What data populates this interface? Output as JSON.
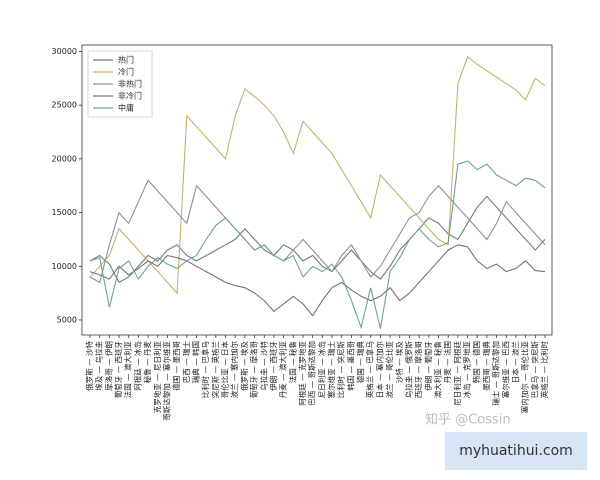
{
  "chart_data": {
    "type": "line",
    "categories": [
      "俄罗斯 — 沙特",
      "埃及 — 乌拉圭",
      "摩洛哥 — 伊朗",
      "葡萄牙 — 西班牙",
      "法国 — 澳大利亚",
      "阿根廷 — 冰岛",
      "秘鲁 — 丹麦",
      "克罗地亚 — 尼日利亚",
      "哥斯达黎加 — 塞尔维亚",
      "德国 — 墨西哥",
      "巴西 — 瑞士",
      "瑞典 — 韩国",
      "比利时 — 巴拿马",
      "突尼斯 — 英格兰",
      "哥伦比亚 — 日本",
      "波兰 — 塞内加尔",
      "俄罗斯 — 埃及",
      "葡萄牙 — 摩洛哥",
      "乌拉圭 — 沙特",
      "伊朗 — 西班牙",
      "丹麦 — 澳大利亚",
      "法国 — 秘鲁",
      "阿根廷 — 克罗地亚",
      "巴西 — 哥斯达黎加",
      "尼日利亚 — 冰岛",
      "塞尔维亚 — 瑞士",
      "比利时 — 突尼斯",
      "韩国 — 墨西哥",
      "德国 — 瑞典",
      "英格兰 — 巴拿马",
      "日本 — 塞内加尔",
      "波兰 — 哥伦比亚",
      "沙特 — 埃及",
      "乌拉圭 — 俄罗斯",
      "西班牙 — 摩洛哥",
      "伊朗 — 葡萄牙",
      "澳大利亚 — 秘鲁",
      "丹麦 — 法国",
      "尼日利亚 — 阿根廷",
      "冰岛 — 克罗地亚",
      "韩国 — 德国",
      "墨西哥 — 瑞典",
      "瑞士 — 哥斯达黎加",
      "塞尔维亚 — 巴西",
      "日本 — 波兰",
      "塞内加尔 — 哥伦比亚",
      "巴拿马 — 突尼斯",
      "英格兰 — 比利时"
    ],
    "series": [
      {
        "name": "热门",
        "color": "#6f7a8c",
        "values": [
          10500,
          11000,
          10200,
          8500,
          9000,
          10000,
          11000,
          10500,
          11500,
          12000,
          11000,
          10500,
          11000,
          11500,
          12000,
          12500,
          13500,
          12500,
          11500,
          11000,
          12000,
          11500,
          10500,
          11000,
          10000,
          9500,
          10500,
          11500,
          10500,
          9500,
          8800,
          10000,
          11500,
          12500,
          13500,
          14500,
          14000,
          13000,
          12500,
          14000,
          15500,
          16500,
          15500,
          14500,
          13500,
          12500,
          11500,
          12500
        ]
      },
      {
        "name": "冷门",
        "color": "#c4b36a",
        "values": [
          9000,
          10000,
          11000,
          13500,
          12500,
          11500,
          10500,
          9500,
          8500,
          7500,
          24000,
          23000,
          22000,
          21000,
          20000,
          24000,
          26500,
          25800,
          25000,
          24000,
          22500,
          20500,
          23500,
          22500,
          21500,
          20500,
          19000,
          17500,
          16000,
          14500,
          18500,
          17500,
          16500,
          15500,
          14500,
          13500,
          12500,
          12000,
          27000,
          29500,
          28800,
          28200,
          27600,
          27000,
          26400,
          25500,
          27500,
          26800
        ]
      },
      {
        "name": "非热门",
        "color": "#8d9191",
        "values": [
          9000,
          8500,
          12000,
          15000,
          14000,
          16000,
          18000,
          17000,
          16000,
          15000,
          14000,
          17500,
          16500,
          15500,
          14500,
          13500,
          12500,
          11500,
          12000,
          11000,
          10500,
          11500,
          12500,
          11500,
          10500,
          9500,
          11000,
          12000,
          10500,
          9000,
          10000,
          11500,
          13000,
          14500,
          15000,
          16500,
          17500,
          16500,
          15500,
          14500,
          13500,
          12500,
          14000,
          16000,
          15000,
          14000,
          13000,
          12000
        ]
      },
      {
        "name": "非冷门",
        "color": "#806a82",
        "values": [
          9500,
          9200,
          8800,
          10000,
          9200,
          9800,
          10500,
          10000,
          11000,
          10800,
          10500,
          10000,
          9500,
          9000,
          8500,
          8200,
          8000,
          7500,
          6800,
          5800,
          6500,
          7200,
          6500,
          5400,
          6800,
          8000,
          8500,
          7800,
          7200,
          6800,
          7200,
          8000,
          6800,
          7500,
          8500,
          9500,
          10500,
          11500,
          12000,
          11800,
          10500,
          9800,
          10200,
          9500,
          9800,
          10500,
          9600,
          9500
        ]
      },
      {
        "name": "中庸",
        "color": "#6aa396",
        "values": [
          10500,
          10800,
          6200,
          9800,
          10500,
          8800,
          10000,
          10800,
          10200,
          9800,
          10500,
          11000,
          12500,
          13800,
          14500,
          13500,
          12500,
          11500,
          12000,
          11000,
          10500,
          11000,
          9000,
          10000,
          9500,
          10200,
          9000,
          6800,
          4300,
          8000,
          4200,
          9500,
          10800,
          12500,
          13500,
          12500,
          11800,
          12200,
          19500,
          19800,
          19000,
          19500,
          18500,
          18000,
          17500,
          18200,
          18000,
          17300
        ]
      }
    ],
    "ylim": [
      3600,
      30600
    ],
    "yticks": [
      5000,
      10000,
      15000,
      20000,
      25000,
      30000
    ],
    "grid": false,
    "legend": "upper-left"
  },
  "watermark": {
    "zhihu": "知乎 @Cossin",
    "site": "myhuatihui.com"
  }
}
